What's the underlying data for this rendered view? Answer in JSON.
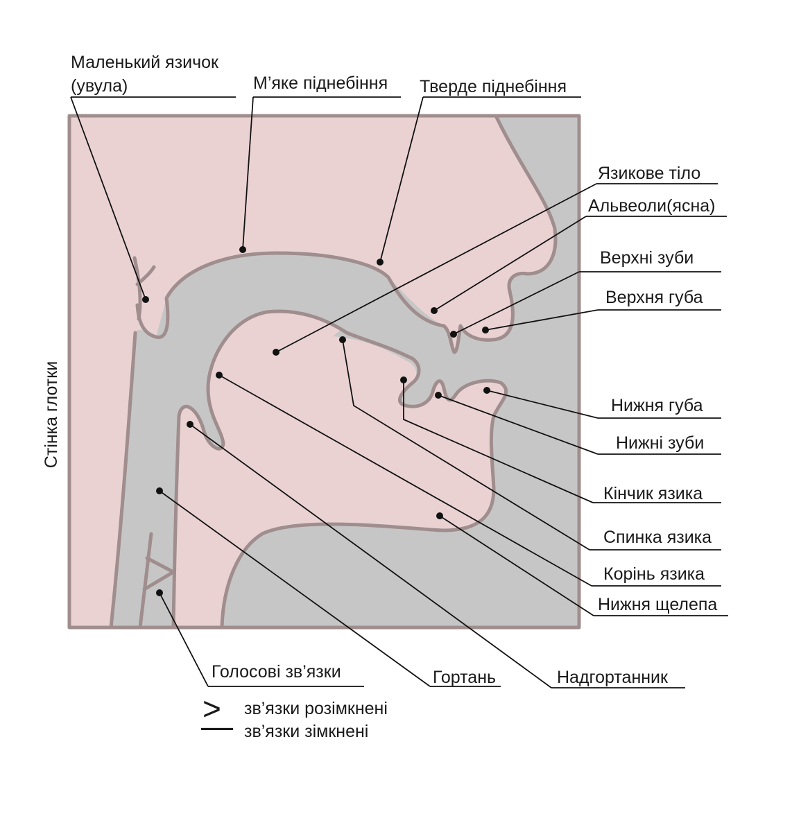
{
  "diagram": {
    "labels": {
      "uvula_line1": "Маленький язичок",
      "uvula_line2": "(увула)",
      "soft_palate": "М’яке піднебіння",
      "hard_palate": "Тверде піднебіння",
      "tongue_body": "Язикове тіло",
      "alveoli": "Альвеоли(ясна)",
      "upper_teeth": "Верхні зуби",
      "upper_lip": "Верхня губа",
      "lower_lip": "Нижня губа",
      "lower_teeth": "Нижні зуби",
      "tongue_tip": "Кінчик язика",
      "tongue_back": "Спинка язика",
      "tongue_root": "Корінь язика",
      "lower_jaw": "Нижня щелепа",
      "pharynx_wall": "Стінка глотки",
      "vocal_cords": "Голосові зв’язки",
      "larynx": "Гортань",
      "epiglottis": "Надгортанник"
    },
    "legend": {
      "open_symbol": ">",
      "open_label": "зв’язки розімкнені",
      "closed_symbol": "—",
      "closed_label": "зв’язки зімкнені"
    },
    "colors": {
      "tissue": "#ead2d3",
      "cavity": "#c6c6c6",
      "outline": "#a08d8d"
    }
  }
}
